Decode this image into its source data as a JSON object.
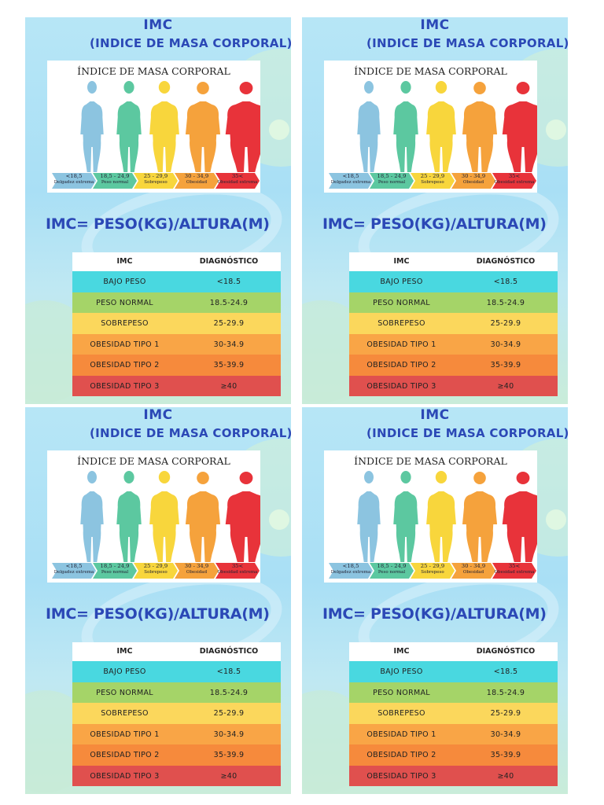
{
  "title_line1": "IMC",
  "title_line2": "(INDICE DE MASA CORPORAL)",
  "image_title": "ÍNDICE DE MASA CORPORAL",
  "figure_colors": [
    "#8cc4e0",
    "#5cc8a0",
    "#f8d63c",
    "#f5a23c",
    "#e8333a"
  ],
  "scale_tags": [
    {
      "range": "<18,5",
      "label": "Delgadez extrema",
      "color": "#8cc4e0"
    },
    {
      "range": "18,5 - 24,9",
      "label": "Peso normal",
      "color": "#5cc8a0"
    },
    {
      "range": "25 - 29,9",
      "label": "Sobrepeso",
      "color": "#f8d63c"
    },
    {
      "range": "30 - 34,9",
      "label": "Obesidad",
      "color": "#f5a23c"
    },
    {
      "range": "35<",
      "label": "Obesidad extrema",
      "color": "#e8333a"
    }
  ],
  "formula": "IMC= PESO(KG)/ALTURA(M)",
  "table": {
    "headers": [
      "IMC",
      "DIAGNÓSTICO"
    ],
    "rows": [
      {
        "label": "BAJO PESO",
        "value": "<18.5",
        "color": "#49d8e0"
      },
      {
        "label": "PESO NORMAL",
        "value": "18.5-24.9",
        "color": "#a5d468"
      },
      {
        "label": "SOBREPESO",
        "value": "25-29.9",
        "color": "#fbd75c"
      },
      {
        "label": "OBESIDAD TIPO 1",
        "value": "30-34.9",
        "color": "#f9a546"
      },
      {
        "label": "OBESIDAD TIPO 2",
        "value": "35-39.9",
        "color": "#f68a3c"
      },
      {
        "label": "OBESIDAD TIPO 3",
        "value": "≥40",
        "color": "#e0504e"
      }
    ]
  }
}
